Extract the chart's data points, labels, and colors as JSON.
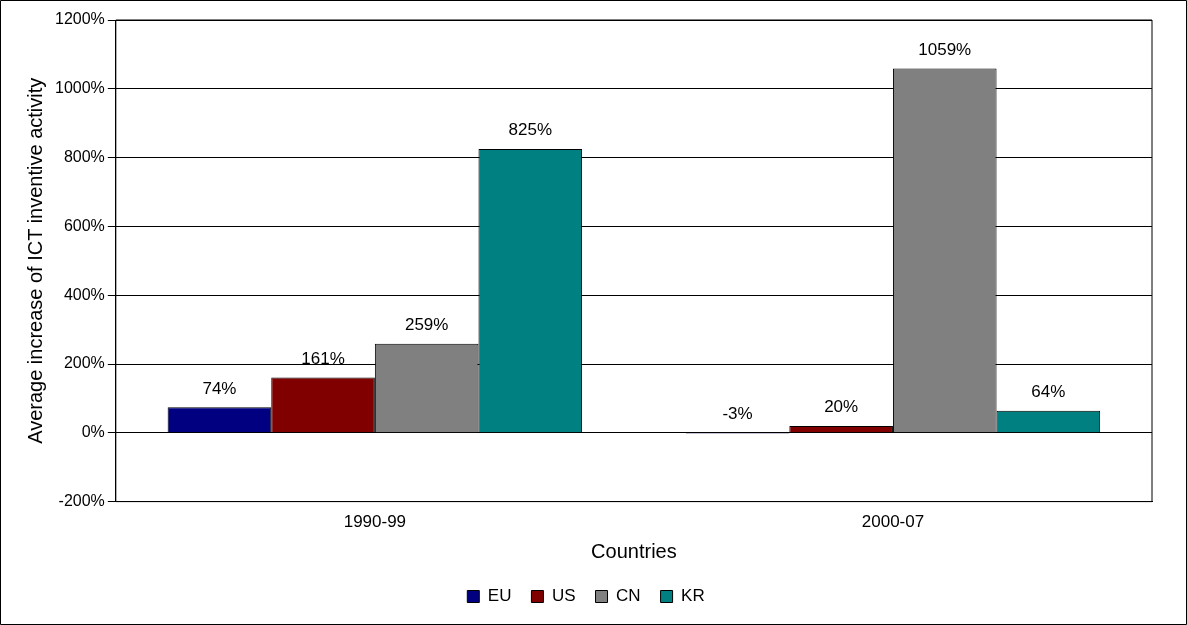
{
  "chart_data": {
    "type": "bar",
    "xlabel": "Countries",
    "ylabel": "Average increase of ICT inventive activity",
    "categories": [
      "1990-99",
      "2000-07"
    ],
    "series": [
      {
        "name": "EU",
        "color": "#000080",
        "values": [
          74,
          -3
        ],
        "value_labels": [
          "74%",
          "-3%"
        ]
      },
      {
        "name": "US",
        "color": "#800000",
        "values": [
          161,
          20
        ],
        "value_labels": [
          "161%",
          "20%"
        ]
      },
      {
        "name": "CN",
        "color": "#808080",
        "values": [
          259,
          1059
        ],
        "value_labels": [
          "259%",
          "1059%"
        ]
      },
      {
        "name": "KR",
        "color": "#008080",
        "values": [
          825,
          64
        ],
        "value_labels": [
          "825%",
          "64%"
        ]
      }
    ],
    "ylim": [
      -200,
      1200
    ],
    "yticks": [
      {
        "value": -200,
        "label": "-200%"
      },
      {
        "value": 0,
        "label": "0%"
      },
      {
        "value": 200,
        "label": "200%"
      },
      {
        "value": 400,
        "label": "400%"
      },
      {
        "value": 600,
        "label": "600%"
      },
      {
        "value": 800,
        "label": "800%"
      },
      {
        "value": 1000,
        "label": "1000%"
      },
      {
        "value": 1200,
        "label": "1200%"
      }
    ],
    "grid": "y",
    "legend": "bottom"
  }
}
